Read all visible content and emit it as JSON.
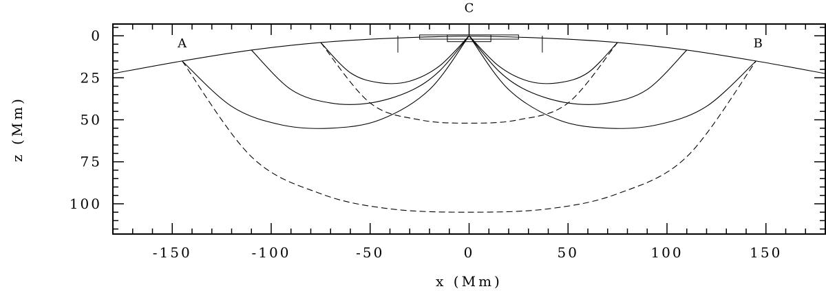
{
  "chart_data": {
    "type": "line",
    "xlabel": "x (Mm)",
    "ylabel": "z (Mm)",
    "xlim": [
      -180,
      180
    ],
    "ylim": [
      118,
      -7
    ],
    "y_inverted": true,
    "x_major_ticks": [
      -150,
      -100,
      -50,
      0,
      50,
      100,
      150
    ],
    "x_tick_labels": [
      "-150",
      "-100",
      "-50",
      "0",
      "50",
      "100",
      "150"
    ],
    "y_major_ticks": [
      0,
      25,
      50,
      75,
      100
    ],
    "y_tick_labels": [
      "0",
      "25",
      "50",
      "75",
      "100"
    ],
    "grid": false,
    "legend": "none",
    "point_labels": [
      {
        "text": "A",
        "x": -145,
        "z": 4
      },
      {
        "text": "B",
        "x": 146,
        "z": 4
      },
      {
        "text": "C",
        "x": 0,
        "z": -17
      }
    ],
    "surface": {
      "style": "solid",
      "x": [
        -180,
        -145,
        -110,
        -75,
        -40,
        0,
        40,
        75,
        110,
        145,
        180
      ],
      "z": [
        22.5,
        15,
        8.5,
        4,
        1.5,
        0.3,
        1.5,
        4,
        8.5,
        15,
        22.5
      ]
    },
    "series": [
      {
        "style": "solid",
        "x": [
          -75,
          -60,
          -45,
          -30,
          -15,
          0
        ],
        "z": [
          4,
          22,
          28,
          27,
          18,
          0
        ]
      },
      {
        "style": "solid",
        "x": [
          0,
          15,
          30,
          45,
          60,
          75
        ],
        "z": [
          0,
          18,
          27,
          28,
          22,
          4
        ]
      },
      {
        "style": "solid",
        "x": [
          -110,
          -90,
          -70,
          -50,
          -30,
          -15,
          0
        ],
        "z": [
          8.5,
          32,
          40,
          40,
          33,
          21,
          0
        ]
      },
      {
        "style": "solid",
        "x": [
          0,
          15,
          30,
          50,
          70,
          90,
          110
        ],
        "z": [
          0,
          21,
          33,
          40,
          40,
          32,
          8.5
        ]
      },
      {
        "style": "solid",
        "x": [
          -145,
          -120,
          -95,
          -70,
          -45,
          -20,
          0
        ],
        "z": [
          15,
          42,
          53,
          55,
          50,
          32,
          0
        ]
      },
      {
        "style": "solid",
        "x": [
          0,
          20,
          45,
          70,
          95,
          120,
          145
        ],
        "z": [
          0,
          32,
          50,
          55,
          53,
          42,
          15
        ]
      },
      {
        "style": "dashed",
        "x": [
          -75,
          -50,
          -25,
          0,
          25,
          50,
          75
        ],
        "z": [
          4,
          40,
          50,
          52,
          50,
          40,
          4
        ]
      },
      {
        "style": "dashed",
        "x": [
          -145,
          -110,
          -75,
          -40,
          0,
          40,
          75,
          110,
          145
        ],
        "z": [
          15,
          72,
          94,
          103,
          105,
          103,
          94,
          72,
          15
        ]
      }
    ],
    "markers": [
      {
        "shape": "vline",
        "x": -36,
        "z": [
          0,
          10
        ]
      },
      {
        "shape": "vline",
        "x": 37,
        "z": [
          0,
          10
        ]
      },
      {
        "shape": "vline",
        "x": 0,
        "z": [
          -7,
          0
        ]
      },
      {
        "shape": "rect",
        "x": [
          -25,
          25
        ],
        "z": [
          -0.5,
          2
        ]
      },
      {
        "shape": "rect",
        "x": [
          -11,
          11
        ],
        "z": [
          -0.5,
          3.5
        ]
      }
    ]
  }
}
